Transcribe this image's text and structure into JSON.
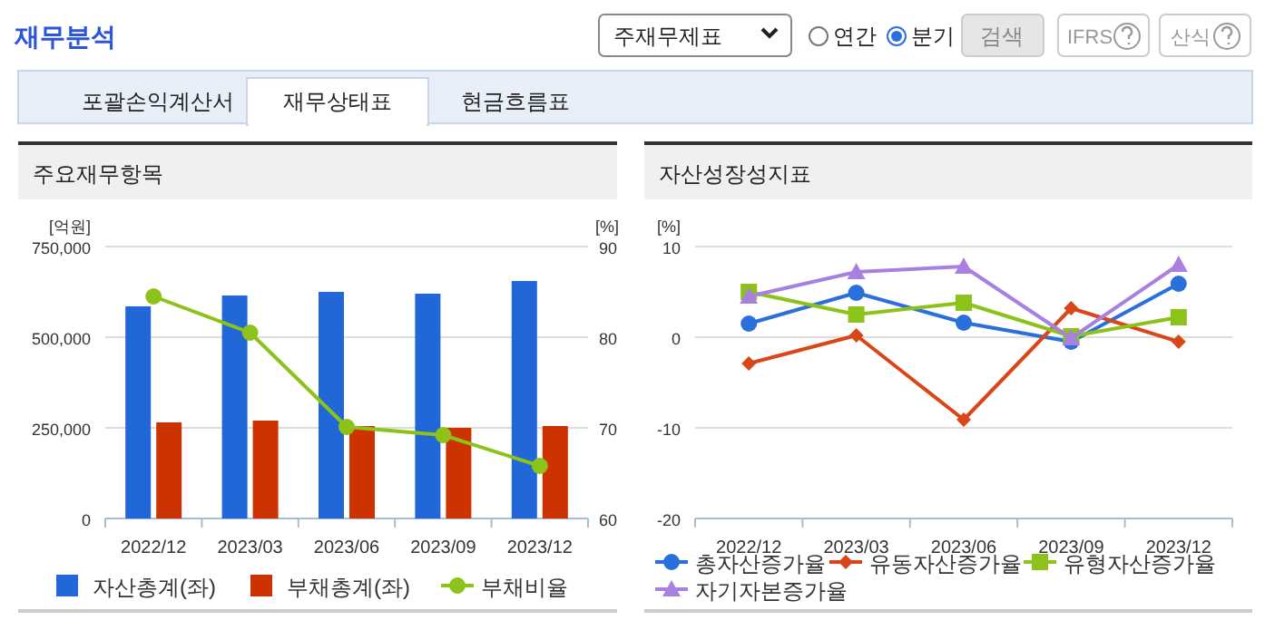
{
  "chart_data": [
    {
      "type": "bar",
      "title": "주요재무항목",
      "ylabel": "[억원]",
      "y2label": "[%]",
      "categories": [
        "2022/12",
        "2023/03",
        "2023/06",
        "2023/09",
        "2023/12"
      ],
      "series": [
        {
          "name": "자산총계(좌)",
          "color": "#2167d8",
          "values": [
            585000,
            615000,
            625000,
            620000,
            655000
          ]
        },
        {
          "name": "부채총계(좌)",
          "color": "#cc3300",
          "values": [
            265000,
            270000,
            255000,
            250000,
            255000
          ]
        },
        {
          "name": "부채비율",
          "type": "line",
          "axis": "y2",
          "color": "#8cc21a",
          "marker": "circle",
          "values": [
            84.5,
            80.5,
            70.1,
            69.2,
            65.8
          ]
        }
      ],
      "ylim": [
        0,
        750000
      ],
      "yticks": [
        0,
        {
          "value": 250000,
          "label": "250,000"
        },
        {
          "value": 500000,
          "label": "500,000"
        },
        {
          "value": 750000,
          "label": "750,000"
        }
      ],
      "y2lim": [
        60,
        90
      ],
      "y2ticks": [
        60,
        70,
        80,
        90
      ],
      "grid": "y",
      "legend": "bottom",
      "annotations": [
        "재무분석",
        "주재무제표",
        "연간",
        "분기",
        "검색",
        "IFRS",
        "산식",
        "포괄손익계산서",
        "재무상태표",
        "현금흐름표"
      ]
    },
    {
      "type": "line",
      "title": "자산성장성지표",
      "ylabel": "[%]",
      "categories": [
        "2022/12",
        "2023/03",
        "2023/06",
        "2023/09",
        "2023/12"
      ],
      "series": [
        {
          "name": "총자산증가율",
          "color": "#2a6fdb",
          "marker": "circle",
          "values": [
            1.5,
            4.9,
            1.6,
            -0.5,
            5.9
          ]
        },
        {
          "name": "유동자산증가율",
          "color": "#d9461a",
          "marker": "diamond",
          "values": [
            -2.9,
            0.2,
            -9.1,
            3.2,
            -0.5
          ]
        },
        {
          "name": "유형자산증가율",
          "color": "#8cc21a",
          "marker": "square",
          "values": [
            5.0,
            2.5,
            3.8,
            0.1,
            2.2
          ]
        },
        {
          "name": "자기자본증가율",
          "color": "#a881e0",
          "marker": "triangle",
          "values": [
            4.5,
            7.2,
            7.8,
            -0.1,
            8.0
          ]
        }
      ],
      "ylim": [
        -20,
        10
      ],
      "yticks": [
        -20,
        -10,
        0,
        10
      ],
      "grid": "y",
      "legend": "bottom"
    }
  ]
}
